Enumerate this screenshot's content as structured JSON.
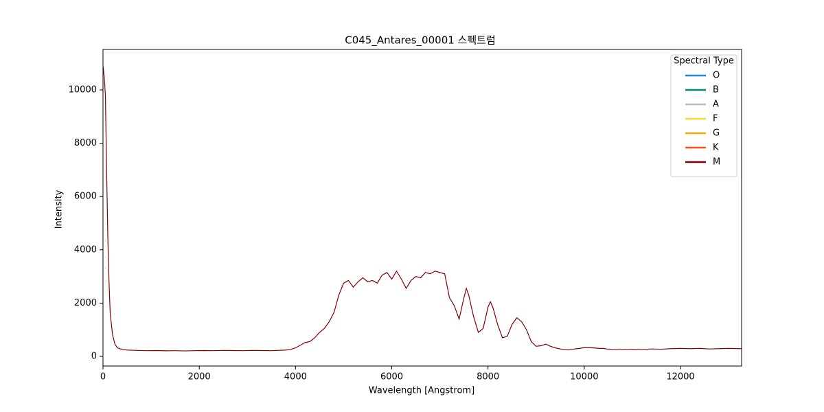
{
  "chart_data": {
    "type": "line",
    "title": "C045_Antares_00001 스펙트럼",
    "x_label": "Wavelength [Angstrom]",
    "y_label": "Intensity",
    "xlim": [
      0,
      13270
    ],
    "ylim": [
      -360,
      11520
    ],
    "xticks": [
      0,
      2000,
      4000,
      6000,
      8000,
      10000,
      12000
    ],
    "yticks": [
      0,
      2000,
      4000,
      6000,
      8000,
      10000
    ],
    "grid": false,
    "legend": {
      "title": "Spectral Type",
      "position": "upper right",
      "entries": [
        {
          "name": "O",
          "color": "#1e88e5"
        },
        {
          "name": "B",
          "color": "#00897b"
        },
        {
          "name": "A",
          "color": "#bdbdbd"
        },
        {
          "name": "F",
          "color": "#fdd835"
        },
        {
          "name": "G",
          "color": "#f4a900"
        },
        {
          "name": "K",
          "color": "#f4511e"
        },
        {
          "name": "M",
          "color": "#800000"
        }
      ]
    },
    "x": [
      0,
      25,
      50,
      75,
      100,
      125,
      150,
      200,
      250,
      300,
      400,
      500,
      700,
      900,
      1100,
      1300,
      1500,
      1700,
      1900,
      2100,
      2300,
      2500,
      2700,
      2900,
      3100,
      3300,
      3500,
      3700,
      3800,
      3900,
      4000,
      4100,
      4200,
      4300,
      4400,
      4500,
      4600,
      4700,
      4800,
      4900,
      5000,
      5100,
      5200,
      5300,
      5400,
      5500,
      5600,
      5700,
      5800,
      5900,
      6000,
      6100,
      6200,
      6300,
      6400,
      6500,
      6600,
      6700,
      6800,
      6900,
      7000,
      7100,
      7200,
      7300,
      7400,
      7500,
      7550,
      7600,
      7700,
      7800,
      7900,
      8000,
      8050,
      8100,
      8200,
      8300,
      8400,
      8500,
      8600,
      8700,
      8800,
      8900,
      9000,
      9100,
      9200,
      9300,
      9400,
      9500,
      9600,
      9700,
      9800,
      9900,
      10000,
      10100,
      10200,
      10300,
      10400,
      10500,
      10600,
      10800,
      11000,
      11200,
      11400,
      11600,
      11800,
      12000,
      12200,
      12400,
      12600,
      12800,
      13000,
      13270
    ],
    "series": [
      {
        "name": "M",
        "color": "#800000",
        "values": [
          10900,
          10500,
          9800,
          7000,
          4500,
          2800,
          1600,
          800,
          450,
          320,
          260,
          240,
          225,
          215,
          220,
          210,
          215,
          205,
          215,
          220,
          215,
          225,
          220,
          215,
          225,
          220,
          215,
          230,
          240,
          260,
          320,
          420,
          520,
          560,
          700,
          900,
          1050,
          1300,
          1650,
          2300,
          2750,
          2850,
          2600,
          2800,
          2950,
          2800,
          2850,
          2750,
          3050,
          3150,
          2900,
          3200,
          2900,
          2550,
          2850,
          3000,
          2950,
          3150,
          3100,
          3200,
          3150,
          3100,
          2200,
          1900,
          1400,
          2200,
          2550,
          2300,
          1500,
          900,
          1050,
          1850,
          2050,
          1850,
          1200,
          700,
          750,
          1200,
          1450,
          1300,
          1000,
          550,
          380,
          400,
          460,
          380,
          320,
          280,
          250,
          250,
          280,
          300,
          330,
          330,
          320,
          300,
          300,
          270,
          250,
          260,
          270,
          260,
          280,
          270,
          290,
          300,
          290,
          300,
          280,
          290,
          300,
          290
        ]
      }
    ]
  }
}
